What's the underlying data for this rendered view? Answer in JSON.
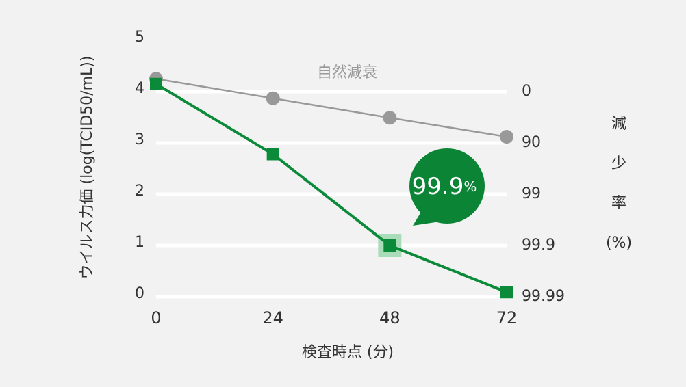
{
  "chart_data": {
    "type": "line",
    "x": [
      0,
      24,
      48,
      72
    ],
    "xlabel": "検査時点 (分)",
    "ylabel": "ウイルス力価 (log(TCID50/mL))",
    "y2label_lines": [
      "減",
      "少",
      "率",
      "(%)"
    ],
    "xlim": [
      0,
      72
    ],
    "xticks": [
      0,
      24,
      48,
      72
    ],
    "ylim": [
      0,
      5
    ],
    "yticks": [
      0,
      1,
      2,
      3,
      4,
      5
    ],
    "y2lim": [
      0,
      5
    ],
    "y2ticks": [
      {
        "value": 4,
        "label": "0"
      },
      {
        "value": 3,
        "label": "90"
      },
      {
        "value": 2,
        "label": "99"
      },
      {
        "value": 1,
        "label": "99.9"
      },
      {
        "value": 0,
        "label": "99.99"
      }
    ],
    "grid": true,
    "series": [
      {
        "name": "自然減衰",
        "color": "#999999",
        "marker": "circle",
        "values": [
          4.25,
          3.87,
          3.49,
          3.12
        ]
      },
      {
        "color": "#0b8a3a",
        "marker": "square",
        "values": [
          4.15,
          2.78,
          1.0,
          0.09
        ]
      }
    ],
    "annotation": {
      "text": "99.9",
      "unit": "%",
      "color": "#0b8436",
      "point": 1
    }
  }
}
